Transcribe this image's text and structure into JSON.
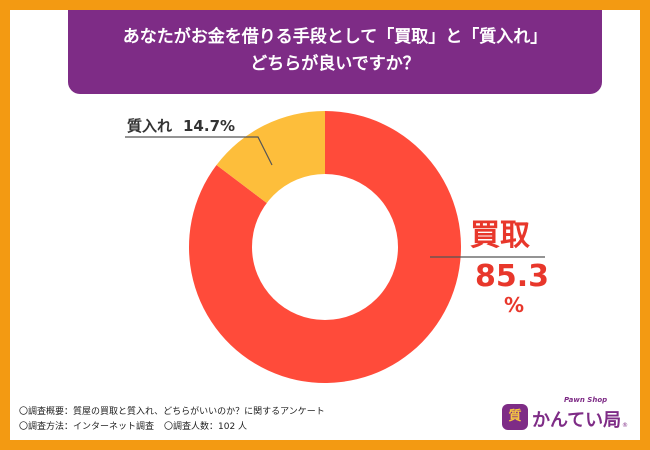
{
  "title": {
    "line1": "あなたがお金を借りる手段として「買取」と「質入れ」",
    "line2": "どちらが良いですか？"
  },
  "chart_data": {
    "type": "pie",
    "donut": true,
    "labels": [
      "買取",
      "質入れ"
    ],
    "values": [
      85.3,
      14.7
    ],
    "value_labels": [
      "85.3",
      "14.7%"
    ],
    "unit": "%",
    "colors": [
      "#FF4B3A",
      "#FDBE3B"
    ]
  },
  "footer": {
    "line1": "〇調査概要：質屋の買取と質入れ、どちらがいいのか？に関するアンケート",
    "method": "〇調査方法：インターネット調査",
    "count": "〇調査人数：102 人"
  },
  "logo": {
    "badge": "質",
    "sub": "Pawn Shop",
    "name": "かんてい局",
    "reg": "®"
  },
  "colors": {
    "frame": "#F39A12",
    "banner": "#7E2C86",
    "text_red": "#E8372B",
    "leader": "#555555"
  }
}
